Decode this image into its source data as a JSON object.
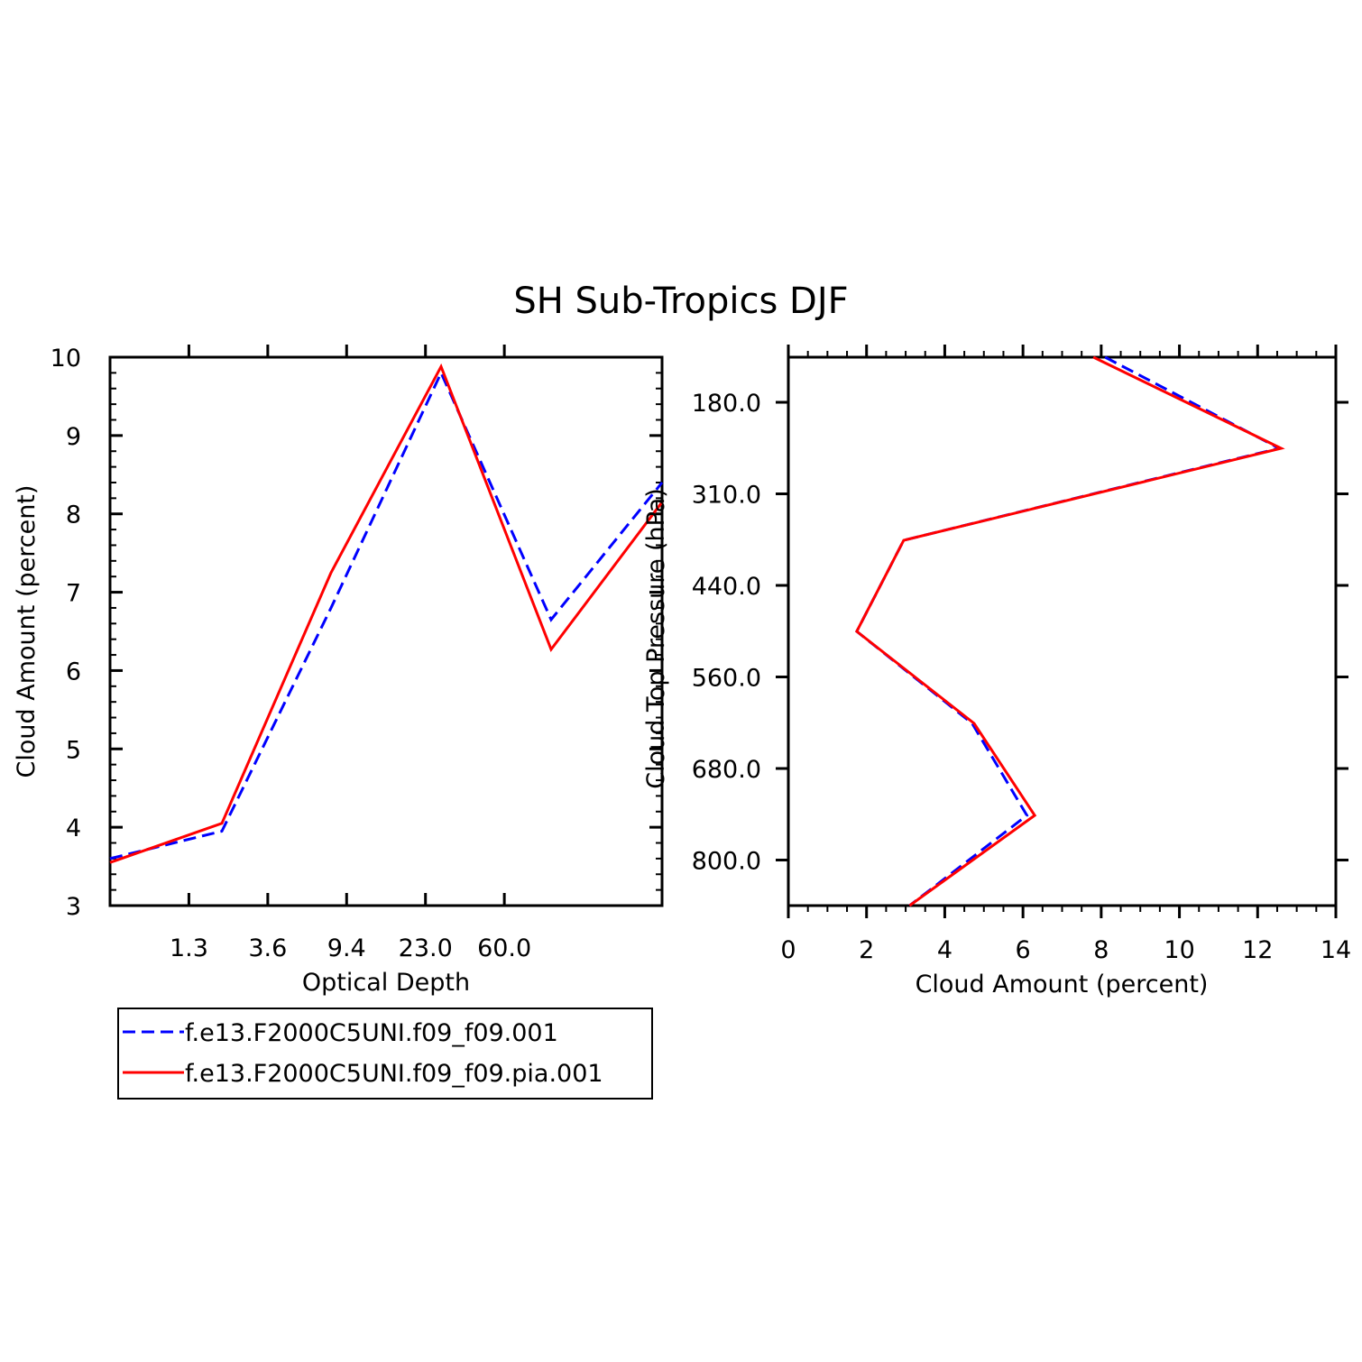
{
  "title": "SH Sub-Tropics DJF",
  "colors": {
    "series1": "#0000ff",
    "series2": "#ff0000",
    "axis": "#000000"
  },
  "legend": [
    {
      "label": "f.e13.F2000C5UNI.f09_f09.001",
      "style": "dashed",
      "color": "#0000ff"
    },
    {
      "label": "f.e13.F2000C5UNI.f09_f09.pia.001",
      "style": "solid",
      "color": "#ff0000"
    }
  ],
  "chart_data": [
    {
      "type": "line",
      "xlabel": "Optical Depth",
      "ylabel": "Cloud Amount (percent)",
      "ylim": [
        3,
        10
      ],
      "yticks": [
        "3",
        "4",
        "5",
        "6",
        "7",
        "8",
        "9",
        "10"
      ],
      "xtick_labels": [
        "1.3",
        "3.6",
        "9.4",
        "23.0",
        "60.0"
      ],
      "x_bins": 7,
      "series": [
        {
          "name": "f.e13.F2000C5UNI.f09_f09.001",
          "values": [
            3.6,
            3.95,
            6.8,
            9.8,
            6.65,
            8.4
          ]
        },
        {
          "name": "f.e13.F2000C5UNI.f09_f09.pia.001",
          "values": [
            3.55,
            4.05,
            7.25,
            9.88,
            6.27,
            8.15
          ]
        }
      ]
    },
    {
      "type": "line",
      "orientation": "horizontal",
      "xlabel": "Cloud Amount (percent)",
      "ylabel": "Cloud Top Pressure (hPa)",
      "xlim": [
        0,
        14
      ],
      "xticks": [
        "0",
        "2",
        "4",
        "6",
        "8",
        "10",
        "12",
        "14"
      ],
      "ytick_labels": [
        "180.0",
        "310.0",
        "440.0",
        "560.0",
        "680.0",
        "800.0"
      ],
      "y_bins": 7,
      "series": [
        {
          "name": "f.e13.F2000C5UNI.f09_f09.001",
          "values": [
            8.1,
            12.55,
            2.95,
            1.75,
            4.7,
            6.1,
            3.1
          ]
        },
        {
          "name": "f.e13.F2000C5UNI.f09_f09.pia.001",
          "values": [
            7.8,
            12.6,
            2.95,
            1.75,
            4.75,
            6.3,
            3.1
          ]
        }
      ]
    }
  ]
}
